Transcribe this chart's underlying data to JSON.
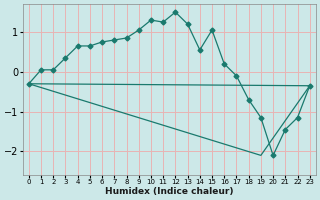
{
  "xlabel": "Humidex (Indice chaleur)",
  "background_color": "#cce8e8",
  "grid_color": "#e8b4b4",
  "line_color": "#1a7a6e",
  "xlim": [
    -0.5,
    23.5
  ],
  "ylim": [
    -2.6,
    1.7
  ],
  "xticks": [
    0,
    1,
    2,
    3,
    4,
    5,
    6,
    7,
    8,
    9,
    10,
    11,
    12,
    13,
    14,
    15,
    16,
    17,
    18,
    19,
    20,
    21,
    22,
    23
  ],
  "yticks": [
    -2,
    -1,
    0,
    1
  ],
  "line1_x": [
    0,
    1,
    2,
    3,
    4,
    5,
    6,
    7,
    8,
    9,
    10,
    11,
    12,
    13,
    14,
    15,
    16,
    17,
    18,
    19,
    20,
    21,
    22,
    23
  ],
  "line1_y": [
    -0.3,
    0.05,
    0.05,
    0.35,
    0.65,
    0.65,
    0.75,
    0.8,
    0.85,
    1.05,
    1.3,
    1.25,
    1.5,
    1.2,
    0.55,
    1.05,
    0.2,
    -0.1,
    -0.7,
    -1.15,
    -2.1,
    -1.45,
    -1.15,
    -0.35
  ],
  "line2_x": [
    0,
    23
  ],
  "line2_y": [
    -0.3,
    -0.35
  ],
  "line3_x": [
    0,
    19,
    23
  ],
  "line3_y": [
    -0.3,
    -2.1,
    -0.35
  ]
}
